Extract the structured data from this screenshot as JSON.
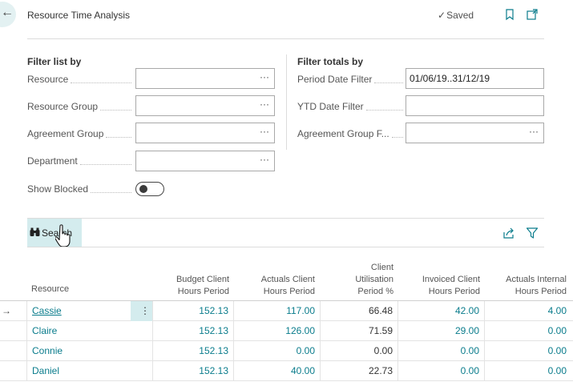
{
  "header": {
    "title": "Resource Time Analysis",
    "saved_label": "Saved",
    "back_icon": "arrow-left-icon",
    "bookmark_icon": "bookmark-icon",
    "open_new_icon": "open-in-new-window-icon"
  },
  "filter_list": {
    "title": "Filter list by",
    "fields": [
      {
        "label": "Resource",
        "value": "",
        "has_lookup": true
      },
      {
        "label": "Resource Group",
        "value": "",
        "has_lookup": true
      },
      {
        "label": "Agreement Group",
        "value": "",
        "has_lookup": true
      },
      {
        "label": "Department",
        "value": "",
        "has_lookup": true
      }
    ],
    "show_blocked_label": "Show Blocked",
    "show_blocked_value": "off"
  },
  "filter_totals": {
    "title": "Filter totals by",
    "fields": [
      {
        "label": "Period Date Filter",
        "value": "01/06/19..31/12/19"
      },
      {
        "label": "YTD Date Filter",
        "value": ""
      },
      {
        "label": "Agreement Group F...",
        "value": ""
      }
    ]
  },
  "actions": {
    "search_label": "Search",
    "share_icon": "share-icon",
    "filter_icon": "filter-icon"
  },
  "lookup_glyph": "···",
  "kebab_glyph": "⋮",
  "row_marker": "→",
  "table": {
    "headers": {
      "resource": "Resource",
      "budget_client": [
        "Budget Client",
        "Hours Period"
      ],
      "actuals_client": [
        "Actuals Client",
        "Hours Period"
      ],
      "utilisation": [
        "Client",
        "Utilisation",
        "Period %"
      ],
      "invoiced_client": [
        "Invoiced Client",
        "Hours Period"
      ],
      "actuals_internal": [
        "Actuals Internal",
        "Hours Period"
      ]
    },
    "rows": [
      {
        "resource": "Cassie",
        "budget": "152.13",
        "actuals": "117.00",
        "utilisation": "66.48",
        "invoiced": "42.00",
        "internal": "4.00"
      },
      {
        "resource": "Claire",
        "budget": "152.13",
        "actuals": "126.00",
        "utilisation": "71.59",
        "invoiced": "29.00",
        "internal": "0.00"
      },
      {
        "resource": "Connie",
        "budget": "152.13",
        "actuals": "0.00",
        "utilisation": "0.00",
        "invoiced": "0.00",
        "internal": "0.00"
      },
      {
        "resource": "Daniel",
        "budget": "152.13",
        "actuals": "40.00",
        "utilisation": "22.73",
        "invoiced": "0.00",
        "internal": "0.00"
      }
    ]
  }
}
